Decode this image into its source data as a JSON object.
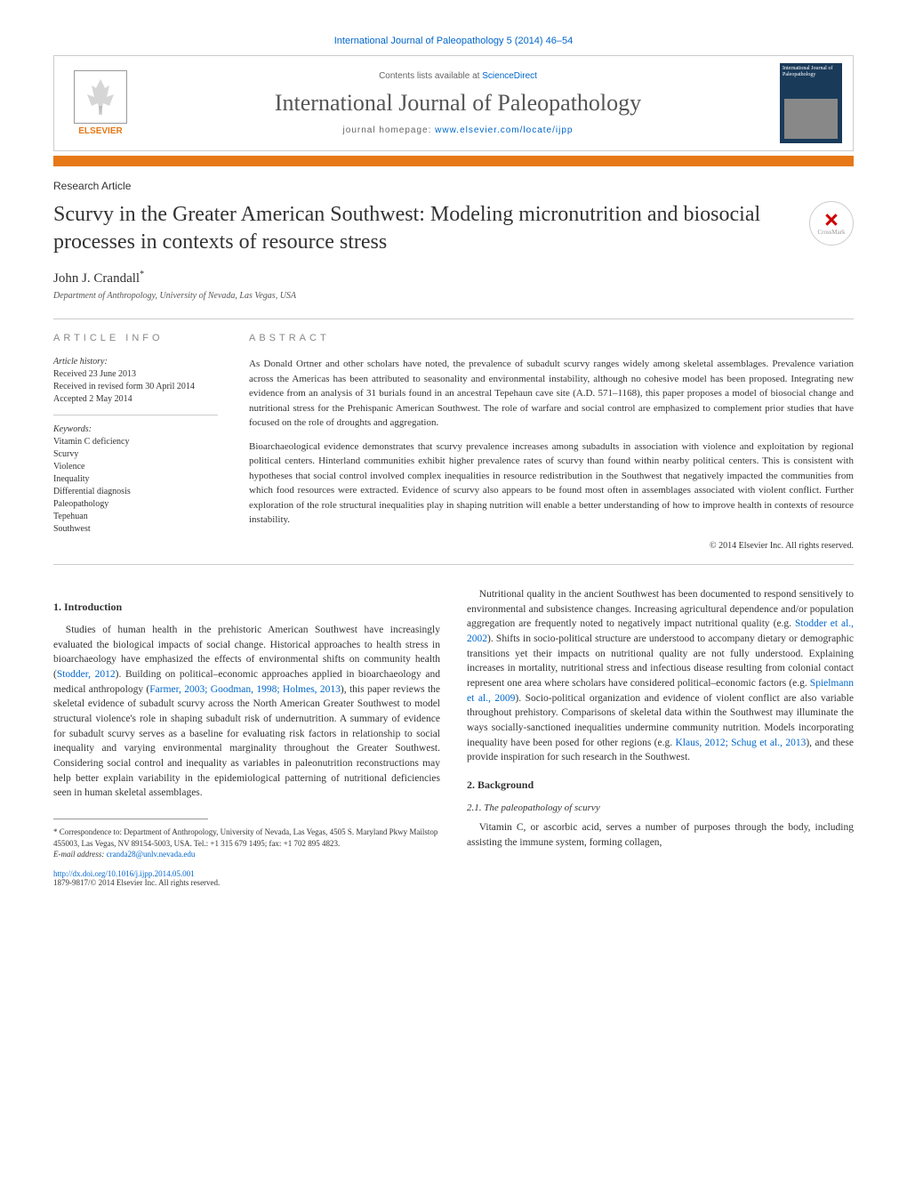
{
  "journal_ref": "International Journal of Paleopathology 5 (2014) 46–54",
  "header": {
    "contents_text": "Contents lists available at ",
    "contents_link": "ScienceDirect",
    "journal_name": "International Journal of Paleopathology",
    "homepage_label": "journal homepage: ",
    "homepage_url": "www.elsevier.com/locate/ijpp",
    "elsevier": "ELSEVIER",
    "cover_label": "International Journal of Paleopathology"
  },
  "article_type": "Research Article",
  "title": "Scurvy in the Greater American Southwest: Modeling micronutrition and biosocial processes in contexts of resource stress",
  "crossmark": "CrossMark",
  "author": "John J. Crandall",
  "author_mark": "*",
  "affiliation": "Department of Anthropology, University of Nevada, Las Vegas, USA",
  "info": {
    "heading": "ARTICLE INFO",
    "history_heading": "Article history:",
    "history": "Received 23 June 2013\nReceived in revised form 30 April 2014\nAccepted 2 May 2014",
    "keywords_heading": "Keywords:",
    "keywords": "Vitamin C deficiency\nScurvy\nViolence\nInequality\nDifferential diagnosis\nPaleopathology\nTepehuan\nSouthwest"
  },
  "abstract": {
    "heading": "ABSTRACT",
    "p1": "As Donald Ortner and other scholars have noted, the prevalence of subadult scurvy ranges widely among skeletal assemblages. Prevalence variation across the Americas has been attributed to seasonality and environmental instability, although no cohesive model has been proposed. Integrating new evidence from an analysis of 31 burials found in an ancestral Tepehaun cave site (A.D. 571–1168), this paper proposes a model of biosocial change and nutritional stress for the Prehispanic American Southwest. The role of warfare and social control are emphasized to complement prior studies that have focused on the role of droughts and aggregation.",
    "p2": "Bioarchaeological evidence demonstrates that scurvy prevalence increases among subadults in association with violence and exploitation by regional political centers. Hinterland communities exhibit higher prevalence rates of scurvy than found within nearby political centers. This is consistent with hypotheses that social control involved complex inequalities in resource redistribution in the Southwest that negatively impacted the communities from which food resources were extracted. Evidence of scurvy also appears to be found most often in assemblages associated with violent conflict. Further exploration of the role structural inequalities play in shaping nutrition will enable a better understanding of how to improve health in contexts of resource instability.",
    "copyright": "© 2014 Elsevier Inc. All rights reserved."
  },
  "sections": {
    "s1_heading": "1. Introduction",
    "s1_p1_a": "Studies of human health in the prehistoric American Southwest have increasingly evaluated the biological impacts of social change. Historical approaches to health stress in bioarchaeology have emphasized the effects of environmental shifts on community health (",
    "s1_link1": "Stodder, 2012",
    "s1_p1_b": "). Building on political–economic approaches applied in bioarchaeology and medical anthropology (",
    "s1_link2": "Farmer, 2003; Goodman, 1998; Holmes, 2013",
    "s1_p1_c": "), this paper reviews the skeletal evidence of subadult scurvy across the North American Greater Southwest to model structural violence's role in shaping subadult risk of undernutrition. A summary of evidence for subadult scurvy serves as a baseline for evaluating risk factors in relationship to social inequality and varying environmental marginality throughout the Greater Southwest. Considering social control and inequality as variables in paleonutrition reconstructions may help better explain variability in the epidemiological patterning of nutritional deficiencies seen in human skeletal assemblages.",
    "s1_p2_a": "Nutritional quality in the ancient Southwest has been documented to respond sensitively to environmental and subsistence changes. Increasing agricultural dependence and/or population aggregation are frequently noted to negatively impact nutritional quality (e.g. ",
    "s1_link3": "Stodder et al., 2002",
    "s1_p2_b": "). Shifts in socio-political structure are understood to accompany dietary or demographic transitions yet their impacts on nutritional quality are not fully understood. Explaining increases in mortality, nutritional stress and infectious disease resulting from colonial contact represent one area where scholars have considered political–economic factors (e.g. ",
    "s1_link4": "Spielmann et al., 2009",
    "s1_p2_c": "). Socio-political organization and evidence of violent conflict are also variable throughout prehistory. Comparisons of skeletal data within the Southwest may illuminate the ways socially-sanctioned inequalities undermine community nutrition. Models incorporating inequality have been posed for other regions (e.g. ",
    "s1_link5": "Klaus, 2012; Schug et al., 2013",
    "s1_p2_d": "), and these provide inspiration for such research in the Southwest.",
    "s2_heading": "2. Background",
    "s2_1_heading": "2.1. The paleopathology of scurvy",
    "s2_1_p1": "Vitamin C, or ascorbic acid, serves a number of purposes through the body, including assisting the immune system, forming collagen,"
  },
  "footnote": {
    "corr_label": "* ",
    "corr_text": "Correspondence to: Department of Anthropology, University of Nevada, Las Vegas, 4505 S. Maryland Pkwy Mailstop 455003, Las Vegas, NV 89154-5003, USA. Tel.: +1 315 679 1495; fax: +1 702 895 4823.",
    "email_label": "E-mail address: ",
    "email": "cranda28@unlv.nevada.edu"
  },
  "doi": {
    "url": "http://dx.doi.org/10.1016/j.ijpp.2014.05.001",
    "issn_copyright": "1879-9817/© 2014 Elsevier Inc. All rights reserved."
  },
  "colors": {
    "orange": "#e67817",
    "link": "#0066cc",
    "text": "#333333",
    "border": "#cccccc",
    "cover_bg": "#1a3a5a"
  }
}
